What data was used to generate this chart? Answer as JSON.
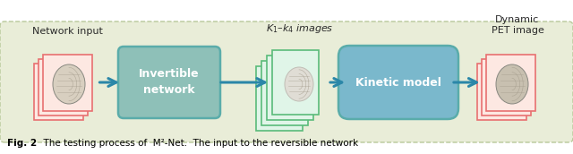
{
  "bg_color": "#e9edd8",
  "bg_border_color": "#b8c89a",
  "invertible_box_facecolor": "#8ec0b8",
  "invertible_box_edgecolor": "#5aacaa",
  "kinetic_box_facecolor": "#7ab8cc",
  "kinetic_box_edgecolor": "#5aacaa",
  "input_card_face": "#fde8e2",
  "input_card_edge": "#e87070",
  "output_card_face": "#fde8e2",
  "output_card_edge": "#e87070",
  "k_card_face": "#e0f5e8",
  "k_card_edge": "#5abb7a",
  "arrow_color": "#2b87a8",
  "text_dark": "#2a2a2a",
  "text_white": "#ffffff",
  "label_network_input": "Network input",
  "label_invertible": "Invertible\nnetwork",
  "label_k": "$K_1$–$k_4$ images",
  "label_kinetic": "Kinetic model",
  "label_dynamic": "Dynamic\nPET image",
  "caption_bold": "Fig. 2",
  "caption_rest": "  The testing process of  M²-Net.  The input to the reversible network",
  "figsize": [
    6.4,
    1.72
  ],
  "dpi": 100,
  "brain_color1": "#d8cfc0",
  "brain_color2": "#c8c0b0",
  "brain_edge": "#888880"
}
